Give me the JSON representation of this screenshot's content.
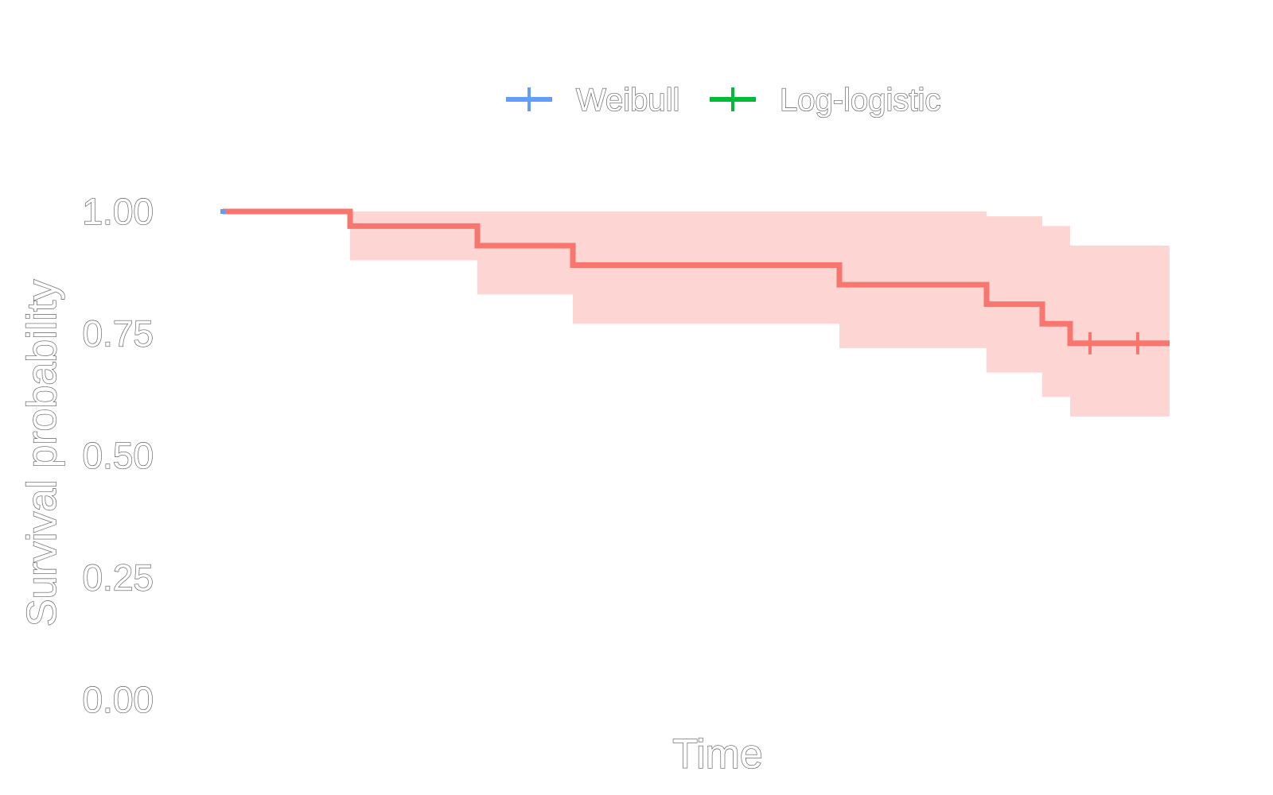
{
  "chart_data": {
    "type": "line",
    "title": "",
    "xlabel": "Time",
    "ylabel": "Survival probability",
    "ylim": [
      0,
      1
    ],
    "yticks": [
      "0.00",
      "0.25",
      "0.50",
      "0.75",
      "1.00"
    ],
    "xlim": [
      0,
      2.6
    ],
    "grid": false,
    "legend": {
      "placement": "top",
      "entries": [
        {
          "label": "Weibull",
          "color": "#619CFF"
        },
        {
          "label": "Log-logistic",
          "color": "#00BA38"
        }
      ]
    },
    "series": [
      {
        "kind": "kaplan-meier",
        "color": "#F8766D",
        "band_color": "#FDD5D2",
        "steps": [
          {
            "x": 0.0,
            "y": 1.0,
            "lower": 1.0,
            "upper": 1.0
          },
          {
            "x": 0.32,
            "y": 0.97,
            "lower": 0.9,
            "upper": 1.0
          },
          {
            "x": 0.64,
            "y": 0.93,
            "lower": 0.83,
            "upper": 1.0
          },
          {
            "x": 0.88,
            "y": 0.89,
            "lower": 0.77,
            "upper": 1.0
          },
          {
            "x": 1.55,
            "y": 0.85,
            "lower": 0.72,
            "upper": 1.0
          },
          {
            "x": 1.92,
            "y": 0.81,
            "lower": 0.67,
            "upper": 0.99
          },
          {
            "x": 2.06,
            "y": 0.77,
            "lower": 0.62,
            "upper": 0.97
          },
          {
            "x": 2.13,
            "y": 0.73,
            "lower": 0.58,
            "upper": 0.93
          }
        ],
        "end_x": 2.38,
        "censored": [
          2.18,
          2.3
        ]
      }
    ]
  }
}
